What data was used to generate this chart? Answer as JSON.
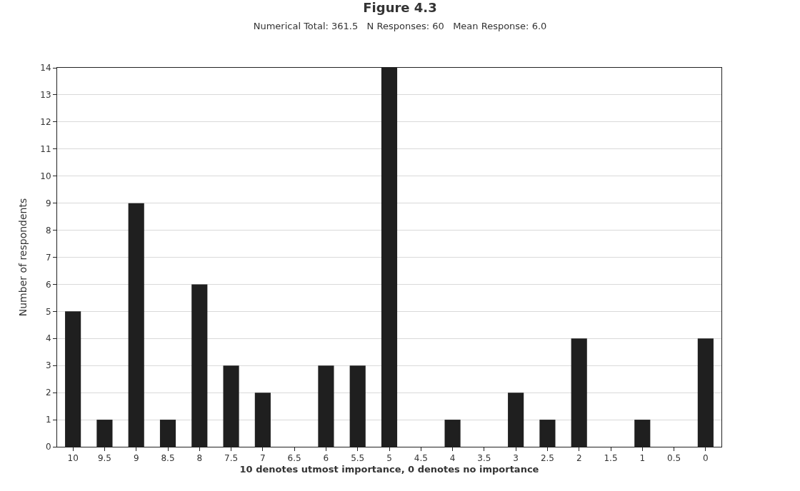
{
  "chart_data": {
    "type": "bar",
    "title": "Figure 4.3",
    "subtitle": "Numerical Total: 361.5   N Responses: 60   Mean Response: 6.0",
    "xlabel": "10 denotes utmost importance, 0 denotes no importance",
    "ylabel": "Number of respondents",
    "categories": [
      "10",
      "9.5",
      "9",
      "8.5",
      "8",
      "7.5",
      "7",
      "6.5",
      "6",
      "5.5",
      "5",
      "4.5",
      "4",
      "3.5",
      "3",
      "2.5",
      "2",
      "1.5",
      "1",
      "0.5",
      "0"
    ],
    "values": [
      5,
      1,
      9,
      1,
      6,
      3,
      2,
      0,
      3,
      3,
      14,
      0,
      1,
      0,
      2,
      1,
      4,
      0,
      1,
      0,
      4
    ],
    "color": "#1f1f1f",
    "ylim": [
      0,
      14
    ],
    "yticks": [
      0,
      1,
      2,
      3,
      4,
      5,
      6,
      7,
      8,
      9,
      10,
      11,
      12,
      13,
      14
    ],
    "grid": "y"
  }
}
